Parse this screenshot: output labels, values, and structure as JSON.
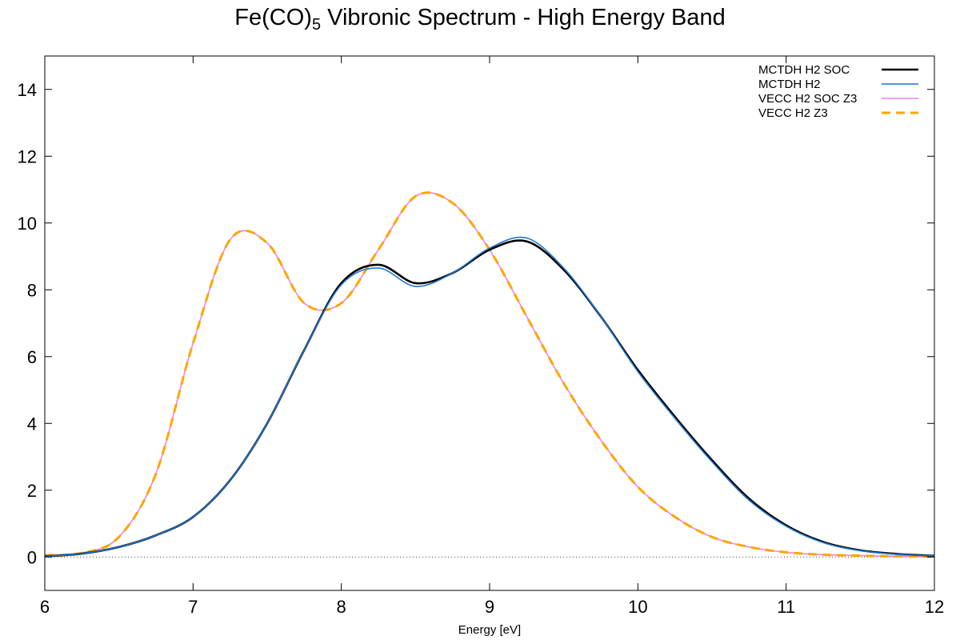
{
  "page": {
    "title_main": "Fe(CO)",
    "title_sub": "5",
    "title_rest": " Vibronic Spectrum - High Energy Band"
  },
  "chart_data": {
    "type": "line",
    "title": "Fe(CO)5 Vibronic Spectrum - High Energy Band",
    "xlabel": "Energy [eV]",
    "ylabel": "",
    "xlim": [
      6,
      12
    ],
    "ylim": [
      -1,
      15
    ],
    "xticks": [
      6,
      7,
      8,
      9,
      10,
      11,
      12
    ],
    "yticks": [
      0,
      2,
      4,
      6,
      8,
      10,
      12,
      14
    ],
    "xtick_labels": [
      "6",
      "7",
      "8",
      "9",
      "10",
      "11",
      "12"
    ],
    "ytick_labels": [
      "0",
      "2",
      "4",
      "6",
      "8",
      "10",
      "12",
      "14"
    ],
    "zero_line": true,
    "grid": false,
    "legend_position": "top-right",
    "x": [
      6.0,
      6.25,
      6.5,
      6.75,
      7.0,
      7.25,
      7.5,
      7.75,
      8.0,
      8.25,
      8.5,
      8.75,
      9.0,
      9.25,
      9.5,
      9.75,
      10.0,
      10.25,
      10.5,
      10.75,
      11.0,
      11.25,
      11.5,
      11.75,
      12.0
    ],
    "series": [
      {
        "name": "MCTDH  H2 SOC",
        "color": "#000000",
        "style": "solid",
        "width": 2.6,
        "values": [
          0.02,
          0.1,
          0.3,
          0.65,
          1.2,
          2.3,
          4.0,
          6.2,
          8.2,
          8.75,
          8.2,
          8.5,
          9.2,
          9.45,
          8.6,
          7.2,
          5.6,
          4.2,
          2.9,
          1.75,
          0.95,
          0.45,
          0.2,
          0.09,
          0.04
        ]
      },
      {
        "name": "MCTDH  H2",
        "color": "#1f77d4",
        "style": "solid",
        "width": 1.6,
        "values": [
          0.02,
          0.1,
          0.3,
          0.65,
          1.2,
          2.3,
          4.0,
          6.2,
          8.15,
          8.65,
          8.1,
          8.5,
          9.25,
          9.55,
          8.65,
          7.2,
          5.55,
          4.15,
          2.85,
          1.7,
          0.92,
          0.43,
          0.19,
          0.08,
          0.04
        ]
      },
      {
        "name": "VECC  H2 SOC Z3",
        "color": "#ee82ee",
        "style": "solid",
        "width": 1.6,
        "values": [
          0.05,
          0.12,
          0.6,
          2.5,
          6.4,
          9.5,
          9.4,
          7.6,
          7.6,
          9.2,
          10.8,
          10.6,
          9.2,
          7.2,
          5.2,
          3.5,
          2.1,
          1.2,
          0.6,
          0.3,
          0.14,
          0.07,
          0.04,
          0.02,
          0.01
        ]
      },
      {
        "name": "VECC  H2      Z3",
        "color": "#ffa500",
        "style": "dashed",
        "width": 3,
        "values": [
          0.05,
          0.12,
          0.6,
          2.5,
          6.4,
          9.5,
          9.4,
          7.6,
          7.6,
          9.2,
          10.8,
          10.6,
          9.2,
          7.2,
          5.2,
          3.5,
          2.1,
          1.2,
          0.6,
          0.3,
          0.14,
          0.07,
          0.04,
          0.02,
          0.01
        ]
      }
    ]
  }
}
